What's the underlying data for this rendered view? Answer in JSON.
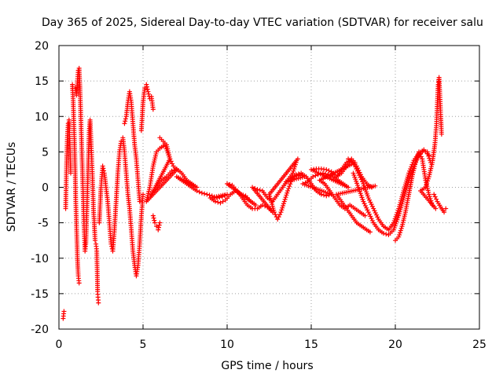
{
  "chart_data": {
    "type": "scatter",
    "title": "Day 365 of 2025, Sidereal Day-to-day VTEC variation (SDTVAR) for receiver salu",
    "xlabel": "GPS time / hours",
    "ylabel": "SDTVAR / TECUs",
    "xlim": [
      0,
      25
    ],
    "ylim": [
      -20,
      20
    ],
    "x_ticks": [
      0,
      5,
      10,
      15,
      20,
      25
    ],
    "y_ticks": [
      -20,
      -15,
      -10,
      -5,
      0,
      5,
      10,
      15,
      20
    ],
    "grid": true,
    "marker": "plus",
    "color": "#ff0000",
    "series": [
      {
        "name": "SDTVAR",
        "points": [
          [
            0.25,
            -18.5
          ],
          [
            0.3,
            -17.5
          ],
          [
            0.4,
            -3
          ],
          [
            0.45,
            3
          ],
          [
            0.5,
            7
          ],
          [
            0.55,
            9
          ],
          [
            0.6,
            9.5
          ],
          [
            0.65,
            6
          ],
          [
            0.7,
            2
          ],
          [
            0.8,
            14.5
          ],
          [
            0.85,
            12
          ],
          [
            0.9,
            8
          ],
          [
            0.95,
            4
          ],
          [
            1.0,
            -2
          ],
          [
            1.05,
            -6
          ],
          [
            1.1,
            -10
          ],
          [
            1.15,
            -12.5
          ],
          [
            1.2,
            -13.5
          ],
          [
            1.0,
            14
          ],
          [
            1.05,
            13
          ],
          [
            1.1,
            15
          ],
          [
            1.15,
            16.5
          ],
          [
            1.2,
            16.8
          ],
          [
            1.25,
            14
          ],
          [
            1.3,
            10
          ],
          [
            1.35,
            6
          ],
          [
            1.4,
            2
          ],
          [
            1.45,
            -2
          ],
          [
            1.5,
            -6
          ],
          [
            1.55,
            -9
          ],
          [
            1.6,
            -8
          ],
          [
            1.65,
            -4
          ],
          [
            1.7,
            0
          ],
          [
            1.75,
            4
          ],
          [
            1.8,
            8
          ],
          [
            1.85,
            9.5
          ],
          [
            1.9,
            7
          ],
          [
            1.95,
            4
          ],
          [
            2.0,
            1
          ],
          [
            2.05,
            -3
          ],
          [
            2.1,
            -5
          ],
          [
            2.15,
            -7.5
          ],
          [
            2.2,
            -8
          ],
          [
            2.25,
            -9
          ],
          [
            2.3,
            -14.7
          ],
          [
            2.32,
            -15.5
          ],
          [
            2.35,
            -16.3
          ],
          [
            2.4,
            -5
          ],
          [
            2.5,
            0
          ],
          [
            2.6,
            3
          ],
          [
            2.7,
            2
          ],
          [
            2.8,
            0
          ],
          [
            2.9,
            -2
          ],
          [
            3.0,
            -5
          ],
          [
            3.1,
            -8
          ],
          [
            3.2,
            -9
          ],
          [
            3.3,
            -6
          ],
          [
            3.4,
            -2
          ],
          [
            3.5,
            2
          ],
          [
            3.6,
            5
          ],
          [
            3.7,
            6.5
          ],
          [
            3.8,
            7
          ],
          [
            3.9,
            5
          ],
          [
            4.0,
            2
          ],
          [
            4.1,
            -1
          ],
          [
            4.2,
            -3
          ],
          [
            4.3,
            -6
          ],
          [
            4.4,
            -9
          ],
          [
            4.5,
            -11
          ],
          [
            4.6,
            -12.5
          ],
          [
            4.7,
            -11
          ],
          [
            4.8,
            -8
          ],
          [
            4.9,
            -4
          ],
          [
            5.0,
            -1
          ],
          [
            3.9,
            9
          ],
          [
            4.0,
            10
          ],
          [
            4.1,
            12
          ],
          [
            4.2,
            13.5
          ],
          [
            4.3,
            12
          ],
          [
            4.4,
            9
          ],
          [
            4.5,
            6
          ],
          [
            4.6,
            4
          ],
          [
            4.7,
            1
          ],
          [
            4.8,
            -2
          ],
          [
            4.9,
            8
          ],
          [
            5.0,
            12
          ],
          [
            5.1,
            14
          ],
          [
            5.2,
            14.5
          ],
          [
            5.3,
            13.5
          ],
          [
            5.4,
            12.5
          ],
          [
            5.5,
            12.8
          ],
          [
            5.6,
            11
          ],
          [
            5.6,
            -4
          ],
          [
            5.7,
            -5
          ],
          [
            5.8,
            -5.5
          ],
          [
            5.9,
            -6
          ],
          [
            6.0,
            -5
          ],
          [
            6.0,
            7
          ],
          [
            6.2,
            6.5
          ],
          [
            6.4,
            6
          ],
          [
            6.6,
            4
          ],
          [
            6.8,
            3
          ],
          [
            7.0,
            2.5
          ],
          [
            5.2,
            -2
          ],
          [
            5.4,
            0
          ],
          [
            5.6,
            3
          ],
          [
            5.8,
            5
          ],
          [
            6.0,
            5.5
          ],
          [
            6.3,
            6
          ],
          [
            6.6,
            4
          ],
          [
            5.5,
            -1
          ],
          [
            5.8,
            0
          ],
          [
            6.1,
            1
          ],
          [
            6.4,
            1.5
          ],
          [
            6.7,
            2.3
          ],
          [
            7.0,
            2.6
          ],
          [
            7.3,
            2
          ],
          [
            7.6,
            1
          ],
          [
            7.9,
            0.5
          ],
          [
            8.2,
            0
          ],
          [
            7.0,
            1.5
          ],
          [
            7.3,
            1
          ],
          [
            7.6,
            0.5
          ],
          [
            7.9,
            0
          ],
          [
            8.2,
            -0.5
          ],
          [
            8.5,
            -0.8
          ],
          [
            8.8,
            -1
          ],
          [
            9.1,
            -1.2
          ],
          [
            9.4,
            -1.5
          ],
          [
            9.7,
            -1.3
          ],
          [
            10.0,
            -1
          ],
          [
            9.0,
            -1.5
          ],
          [
            9.3,
            -2
          ],
          [
            9.6,
            -2.2
          ],
          [
            9.9,
            -1.8
          ],
          [
            10.2,
            -1
          ],
          [
            10.5,
            -0.5
          ],
          [
            10.8,
            -1
          ],
          [
            11.1,
            -1.2
          ],
          [
            11.4,
            -2
          ],
          [
            11.7,
            -2.5
          ],
          [
            10.0,
            0.5
          ],
          [
            10.3,
            0.3
          ],
          [
            10.6,
            -0.5
          ],
          [
            10.9,
            -1.5
          ],
          [
            11.2,
            -2.5
          ],
          [
            11.5,
            -3
          ],
          [
            11.8,
            -3
          ],
          [
            12.1,
            -2.5
          ],
          [
            12.4,
            -2.8
          ],
          [
            12.7,
            -3.5
          ],
          [
            11.5,
            0
          ],
          [
            11.8,
            -0.3
          ],
          [
            12.1,
            -0.5
          ],
          [
            12.4,
            -1.5
          ],
          [
            12.7,
            -2
          ],
          [
            13.0,
            -1
          ],
          [
            13.3,
            0
          ],
          [
            13.6,
            1
          ],
          [
            13.9,
            2
          ],
          [
            14.1,
            3.5
          ],
          [
            14.2,
            4
          ],
          [
            12.5,
            -1
          ],
          [
            12.8,
            -3.5
          ],
          [
            13.0,
            -4.5
          ],
          [
            13.2,
            -3.5
          ],
          [
            13.4,
            -2
          ],
          [
            13.6,
            -0.5
          ],
          [
            13.8,
            0.8
          ],
          [
            14.0,
            1.5
          ],
          [
            14.3,
            1.8
          ],
          [
            14.6,
            1.5
          ],
          [
            13.5,
            0.8
          ],
          [
            13.8,
            1.2
          ],
          [
            14.1,
            1.8
          ],
          [
            14.4,
            2
          ],
          [
            14.7,
            1.5
          ],
          [
            15.0,
            0.5
          ],
          [
            15.3,
            -0.5
          ],
          [
            15.6,
            -1
          ],
          [
            15.9,
            -1.2
          ],
          [
            16.2,
            -1
          ],
          [
            14.5,
            0.5
          ],
          [
            14.8,
            0.8
          ],
          [
            15.1,
            1.5
          ],
          [
            15.4,
            1.8
          ],
          [
            15.7,
            2
          ],
          [
            16.0,
            1.8
          ],
          [
            16.3,
            1.5
          ],
          [
            16.6,
            1
          ],
          [
            16.9,
            0.5
          ],
          [
            17.2,
            0
          ],
          [
            15.0,
            2.5
          ],
          [
            15.3,
            2.6
          ],
          [
            15.6,
            2.6
          ],
          [
            15.9,
            2.5
          ],
          [
            16.2,
            2.2
          ],
          [
            16.5,
            1.5
          ],
          [
            16.8,
            2
          ],
          [
            17.1,
            3
          ],
          [
            17.4,
            4
          ],
          [
            17.6,
            3.5
          ],
          [
            15.5,
            1
          ],
          [
            15.8,
            0.5
          ],
          [
            16.1,
            -0.5
          ],
          [
            16.4,
            -1.5
          ],
          [
            16.7,
            -2.5
          ],
          [
            17.0,
            -3
          ],
          [
            17.3,
            -2.5
          ],
          [
            17.6,
            -3
          ],
          [
            17.9,
            -3.5
          ],
          [
            18.2,
            -4
          ],
          [
            16.5,
            1.5
          ],
          [
            16.8,
            2.5
          ],
          [
            17.1,
            3.5
          ],
          [
            17.4,
            3.8
          ],
          [
            17.7,
            3
          ],
          [
            18.0,
            1.5
          ],
          [
            18.3,
            0.5
          ],
          [
            18.6,
            0
          ],
          [
            18.8,
            0.2
          ],
          [
            16.5,
            -1
          ],
          [
            16.8,
            -2
          ],
          [
            17.1,
            -3
          ],
          [
            17.4,
            -4
          ],
          [
            17.7,
            -5
          ],
          [
            18.0,
            -5.5
          ],
          [
            18.3,
            -6
          ],
          [
            18.5,
            -6.3
          ],
          [
            17.5,
            2
          ],
          [
            17.8,
            0
          ],
          [
            18.1,
            -2
          ],
          [
            18.4,
            -3.5
          ],
          [
            18.7,
            -5
          ],
          [
            19.0,
            -6
          ],
          [
            19.3,
            -6.5
          ],
          [
            19.6,
            -6.7
          ],
          [
            19.9,
            -6
          ],
          [
            20.2,
            -4
          ],
          [
            20.5,
            -1.5
          ],
          [
            20.8,
            1
          ],
          [
            21.1,
            3
          ],
          [
            21.4,
            4.5
          ],
          [
            21.7,
            5.2
          ],
          [
            21.9,
            5
          ],
          [
            22.1,
            3.5
          ],
          [
            17.2,
            4
          ],
          [
            17.5,
            3.5
          ],
          [
            17.8,
            2
          ],
          [
            18.1,
            0.5
          ],
          [
            18.4,
            -1.5
          ],
          [
            18.7,
            -3
          ],
          [
            19.0,
            -4.5
          ],
          [
            19.3,
            -5.5
          ],
          [
            19.6,
            -6
          ],
          [
            19.9,
            -5
          ],
          [
            20.2,
            -3
          ],
          [
            20.5,
            -0.5
          ],
          [
            20.8,
            2
          ],
          [
            21.1,
            3.8
          ],
          [
            21.4,
            4.8
          ],
          [
            21.7,
            5.3
          ],
          [
            22.0,
            4.5
          ],
          [
            20.0,
            -7.5
          ],
          [
            20.2,
            -7
          ],
          [
            20.4,
            -5.5
          ],
          [
            20.6,
            -3.5
          ],
          [
            20.8,
            -1
          ],
          [
            21.0,
            1.5
          ],
          [
            21.2,
            3.5
          ],
          [
            21.4,
            5
          ],
          [
            21.6,
            4
          ],
          [
            21.8,
            1
          ],
          [
            22.0,
            -1
          ],
          [
            22.2,
            -2.5
          ],
          [
            22.4,
            -3
          ],
          [
            21.5,
            -0.5
          ],
          [
            21.8,
            0
          ],
          [
            22.0,
            1.5
          ],
          [
            22.2,
            3.5
          ],
          [
            22.35,
            6
          ],
          [
            22.45,
            9
          ],
          [
            22.5,
            12
          ],
          [
            22.55,
            14.5
          ],
          [
            22.6,
            15.5
          ],
          [
            22.65,
            13
          ],
          [
            22.7,
            10
          ],
          [
            22.75,
            7.5
          ],
          [
            22.3,
            -1
          ],
          [
            22.5,
            -2
          ],
          [
            22.7,
            -2.8
          ],
          [
            22.9,
            -3.5
          ],
          [
            23.0,
            -3
          ]
        ]
      }
    ]
  }
}
